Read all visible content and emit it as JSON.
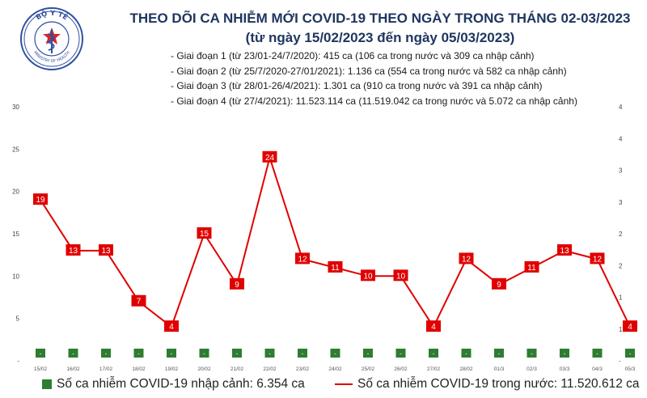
{
  "header": {
    "logo_text": "BỘ Y TẾ",
    "logo_bottom_text": "MINISTRY OF HEALTH",
    "title": "THEO DÕI CA NHIỄM MỚI COVID-19 THEO NGÀY TRONG THÁNG 02-03/2023",
    "subtitle": "(từ ngày 15/02/2023 đến ngày 05/03/2023)"
  },
  "stages": [
    "- Giai đoạn 1 (từ 23/01-24/7/2020): 415 ca (106 ca trong nước và 309 ca nhập cảnh)",
    "- Giai đoạn 2 (từ 25/7/2020-27/01/2021): 1.136 ca (554 ca trong nước và 582 ca nhập cảnh)",
    "- Giai đoạn 3 (từ 28/01-26/4/2021): 1.301 ca (910 ca trong nước và 391 ca nhập cảnh)",
    "- Giai đoạn 4 (từ 27/4/2021): 11.523.114 ca (11.519.042 ca trong nước và 5.072 ca nhập cảnh)"
  ],
  "colors": {
    "line": "#e00000",
    "bar": "#2e7d32",
    "title": "#1f3660",
    "logo": "#2f4fa0"
  },
  "chart_data": {
    "type": "line",
    "categories": [
      "15/02",
      "16/02",
      "17/02",
      "18/02",
      "19/02",
      "20/02",
      "21/02",
      "22/02",
      "23/02",
      "24/02",
      "25/02",
      "26/02",
      "27/02",
      "28/02",
      "01/3",
      "02/3",
      "03/3",
      "04/3",
      "05/3"
    ],
    "series": [
      {
        "name": "Số ca nhiễm COVID-19 trong nước: 11.520.612 ca",
        "axis": "left",
        "values": [
          19,
          13,
          13,
          7,
          4,
          15,
          9,
          24,
          12,
          11,
          10,
          10,
          4,
          12,
          9,
          11,
          13,
          12,
          4
        ]
      },
      {
        "name": "Số ca nhiễm COVID-19 nhập cảnh: 6.354 ca",
        "axis": "right",
        "type": "bar",
        "values": [
          0,
          0,
          0,
          0,
          0,
          0,
          0,
          0,
          0,
          0,
          0,
          0,
          0,
          0,
          0,
          0,
          0,
          0,
          0
        ],
        "labels": [
          "-",
          "-",
          "-",
          "-",
          "-",
          "-",
          "-",
          "-",
          "-",
          "-",
          "-",
          "-",
          "-",
          "-",
          "-",
          "-",
          "-",
          "-",
          "-"
        ]
      }
    ],
    "y_left": {
      "ticks": [
        "-",
        "5",
        "10",
        "15",
        "20",
        "25",
        "30"
      ],
      "ylim": [
        0,
        30
      ]
    },
    "y_right": {
      "ticks": [
        "-",
        "1",
        "1",
        "2",
        "2",
        "3",
        "3",
        "4",
        "4"
      ],
      "ylim": [
        0,
        4
      ]
    },
    "grid": false,
    "legend_position": "bottom"
  },
  "legend": {
    "bar_label": "Số ca nhiễm COVID-19 nhập cảnh: 6.354 ca",
    "line_label": "Số ca nhiễm COVID-19 trong nước: 11.520.612 ca"
  }
}
